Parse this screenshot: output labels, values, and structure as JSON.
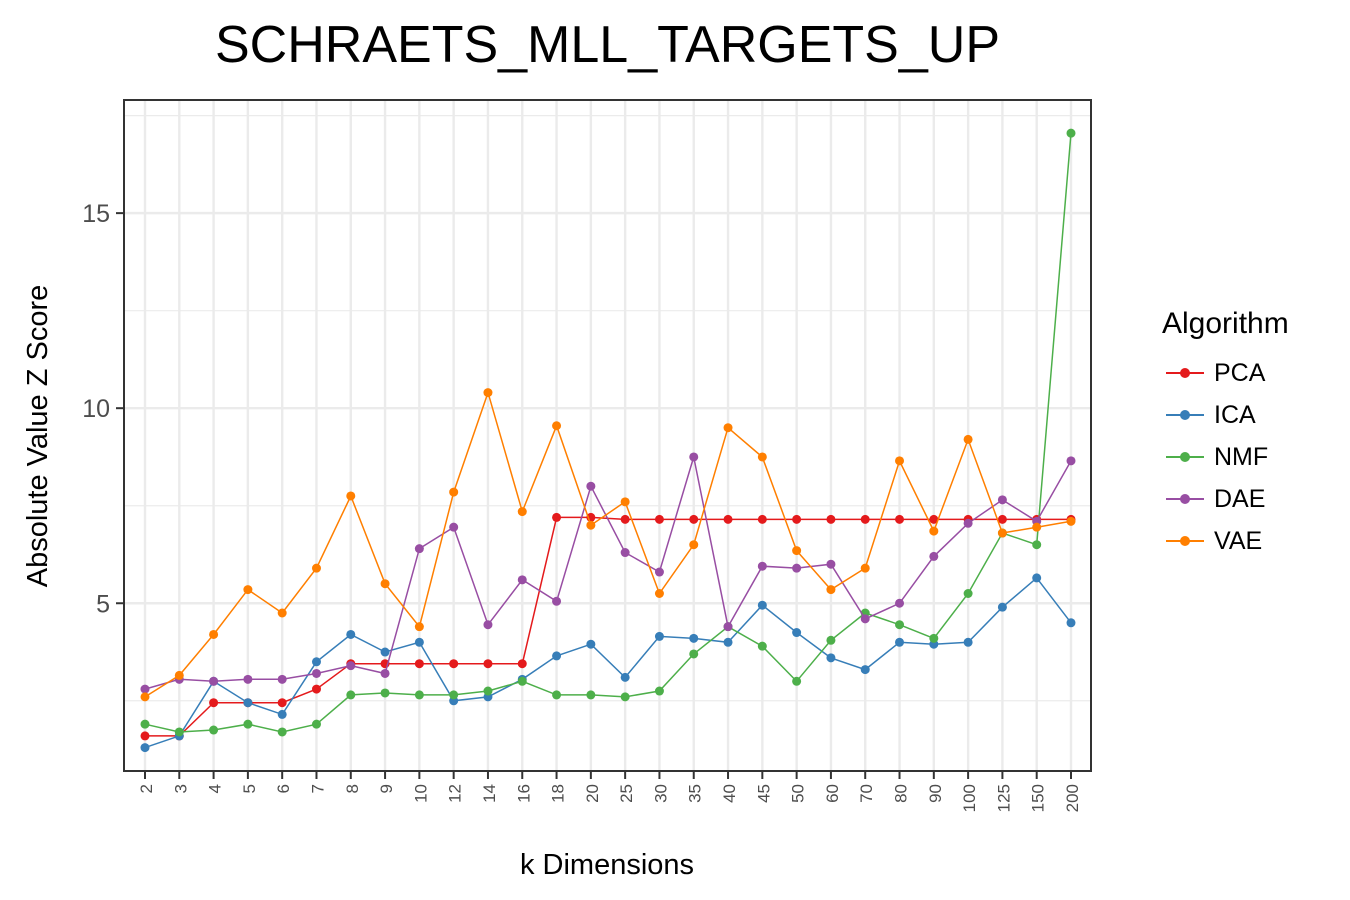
{
  "chart_data": {
    "type": "line",
    "title": "SCHRAETS_MLL_TARGETS_UP",
    "xlabel": "k Dimensions",
    "ylabel": "Absolute Value Z Score",
    "categories": [
      "2",
      "3",
      "4",
      "5",
      "6",
      "7",
      "8",
      "9",
      "10",
      "12",
      "14",
      "16",
      "18",
      "20",
      "25",
      "30",
      "35",
      "40",
      "45",
      "50",
      "60",
      "70",
      "80",
      "90",
      "100",
      "125",
      "150",
      "200"
    ],
    "ylim": [
      0.7,
      17.9
    ],
    "yticks": [
      5,
      10,
      15
    ],
    "grid": true,
    "legend_title": "Algorithm",
    "legend_position": "right",
    "series": [
      {
        "name": "PCA",
        "color": "#e41a1c",
        "values": [
          1.6,
          1.6,
          2.45,
          2.45,
          2.45,
          2.8,
          3.45,
          3.45,
          3.45,
          3.45,
          3.45,
          3.45,
          7.2,
          7.2,
          7.15,
          7.15,
          7.15,
          7.15,
          7.15,
          7.15,
          7.15,
          7.15,
          7.15,
          7.15,
          7.15,
          7.15,
          7.15,
          7.15
        ]
      },
      {
        "name": "ICA",
        "color": "#377eb8",
        "values": [
          1.3,
          1.6,
          3.0,
          2.45,
          2.15,
          3.5,
          4.2,
          3.75,
          4.0,
          2.5,
          2.6,
          3.05,
          3.65,
          3.95,
          3.1,
          4.15,
          4.1,
          4.0,
          4.95,
          4.25,
          3.6,
          3.3,
          4.0,
          3.95,
          4.0,
          4.9,
          5.65,
          4.5
        ]
      },
      {
        "name": "NMF",
        "color": "#4daf4a",
        "values": [
          1.9,
          1.7,
          1.75,
          1.9,
          1.7,
          1.9,
          2.65,
          2.7,
          2.65,
          2.65,
          2.75,
          3.0,
          2.65,
          2.65,
          2.6,
          2.75,
          3.7,
          4.4,
          3.9,
          3.0,
          4.05,
          4.75,
          4.45,
          4.1,
          5.25,
          6.8,
          6.5,
          17.05
        ]
      },
      {
        "name": "DAE",
        "color": "#984ea3",
        "values": [
          2.8,
          3.05,
          3.0,
          3.05,
          3.05,
          3.2,
          3.4,
          3.2,
          6.4,
          6.95,
          4.45,
          5.6,
          5.05,
          8.0,
          6.3,
          5.8,
          8.75,
          4.4,
          5.95,
          5.9,
          6.0,
          4.6,
          5.0,
          6.2,
          7.05,
          7.65,
          7.1,
          8.65
        ]
      },
      {
        "name": "VAE",
        "color": "#ff7f00",
        "values": [
          2.6,
          3.15,
          4.2,
          5.35,
          4.75,
          5.9,
          7.75,
          5.5,
          4.4,
          7.85,
          10.4,
          7.35,
          9.55,
          7.0,
          7.6,
          5.25,
          6.5,
          9.5,
          8.75,
          6.35,
          5.35,
          5.9,
          8.65,
          6.85,
          9.2,
          6.8,
          6.95,
          7.1
        ]
      }
    ]
  }
}
